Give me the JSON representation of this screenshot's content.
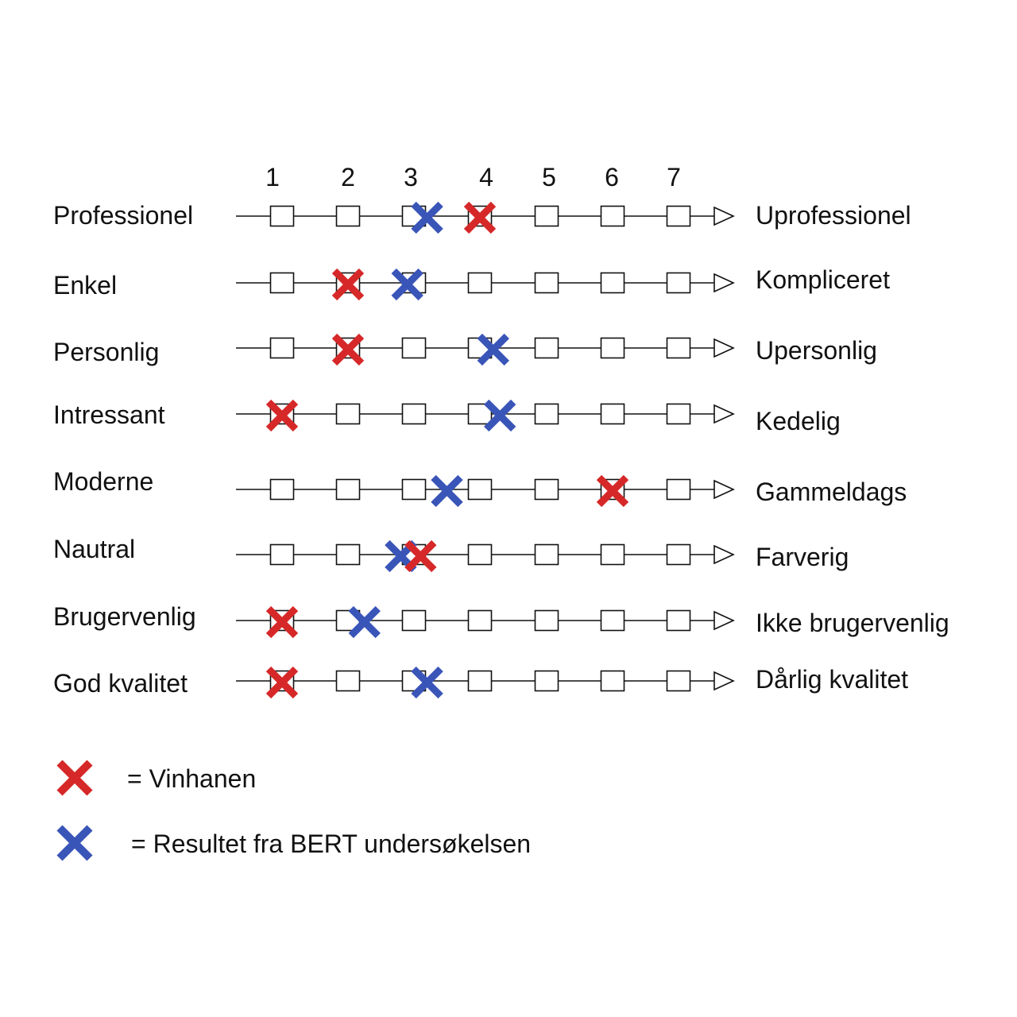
{
  "chart_data": {
    "type": "scatter",
    "scale": [
      "1",
      "2",
      "3",
      "4",
      "5",
      "6",
      "7"
    ],
    "rows": [
      {
        "left": "Professionel",
        "right": "Uprofessionel",
        "red": 4,
        "blue": 3.2
      },
      {
        "left": "Enkel",
        "right": "Kompliceret",
        "red": 2,
        "blue": 2.9
      },
      {
        "left": "Personlig",
        "right": "Upersonlig",
        "red": 2,
        "blue": 4.2
      },
      {
        "left": "Intressant",
        "right": "Kedelig",
        "red": 1,
        "blue": 4.3
      },
      {
        "left": "Moderne",
        "right": "Gammeldags",
        "red": 6,
        "blue": 3.5
      },
      {
        "left": "Nautral",
        "right": "Farverig",
        "red": 3.1,
        "blue": 2.8
      },
      {
        "left": "Brugervenlig",
        "right": "Ikke brugervenlig",
        "red": 1,
        "blue": 2.25
      },
      {
        "left": "God kvalitet",
        "right": "Dårlig kvalitet",
        "red": 1,
        "blue": 3.2
      }
    ],
    "legend": [
      {
        "color": "red",
        "label": "= Vinhanen"
      },
      {
        "color": "blue",
        "label": "= Resultet fra BERT undersøkelsen"
      }
    ],
    "colors": {
      "red": "#d62828",
      "blue": "#3a55b8",
      "line": "#111111"
    }
  }
}
